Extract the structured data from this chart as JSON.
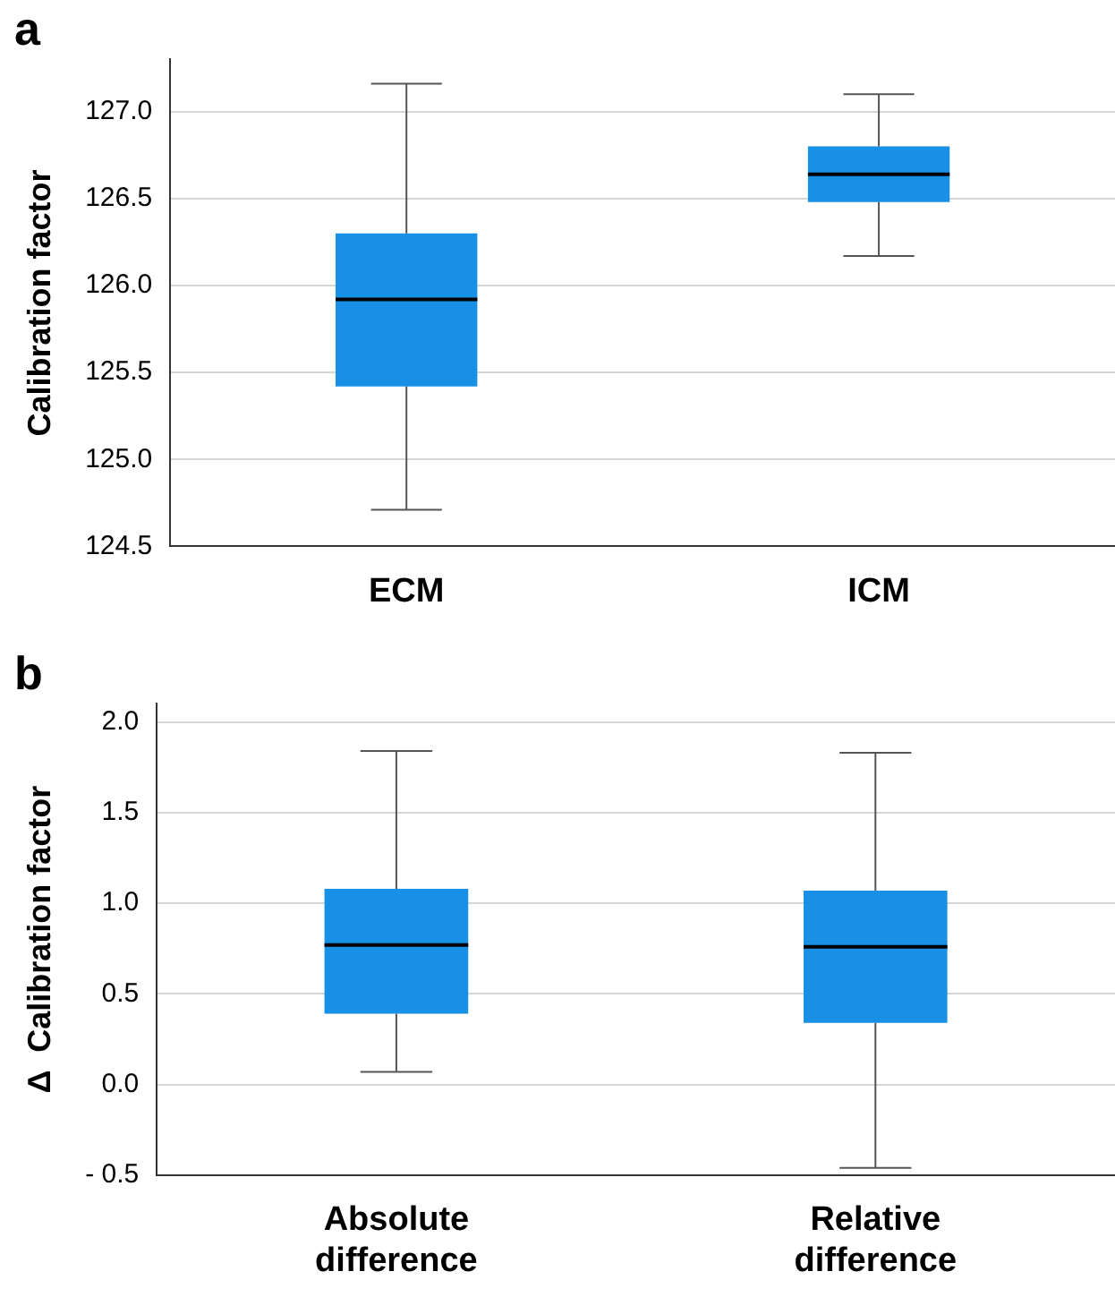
{
  "chart_data": [
    {
      "type": "box",
      "title": "a",
      "ylabel": "Calibration factor",
      "categories": [
        "ECM",
        "ICM"
      ],
      "color": "#1790e6",
      "boxes": [
        {
          "low": 124.71,
          "q1": 125.42,
          "median": 125.92,
          "q3": 126.3,
          "high": 127.16
        },
        {
          "low": 126.17,
          "q1": 126.48,
          "median": 126.64,
          "q3": 126.8,
          "high": 127.1
        }
      ],
      "ylim": [
        124.5,
        127.3
      ],
      "yticks": [
        124.5,
        {
          "value": 125,
          "label": "125.0"
        },
        125.5,
        {
          "value": 126,
          "label": "126.0"
        },
        126.5,
        {
          "value": 127,
          "label": "127.0"
        }
      ],
      "grid": "y",
      "legend": false
    },
    {
      "type": "box",
      "title": "b",
      "ylabel": "Δ  Calibration factor",
      "categories": [
        "Absolute difference",
        "Relative difference"
      ],
      "color": "#1790e6",
      "boxes": [
        {
          "low": 0.07,
          "q1": 0.39,
          "median": 0.77,
          "q3": 1.08,
          "high": 1.84
        },
        {
          "low": -0.46,
          "q1": 0.34,
          "median": 0.76,
          "q3": 1.07,
          "high": 1.83
        }
      ],
      "ylim": [
        -0.5,
        2.1
      ],
      "yticks": [
        {
          "value": -0.5,
          "label": "- 0.5"
        },
        {
          "value": 0,
          "label": "0.0"
        },
        0.5,
        {
          "value": 1,
          "label": "1.0"
        },
        1.5,
        {
          "value": 2,
          "label": "2.0"
        }
      ],
      "grid": "y",
      "legend": false
    }
  ]
}
